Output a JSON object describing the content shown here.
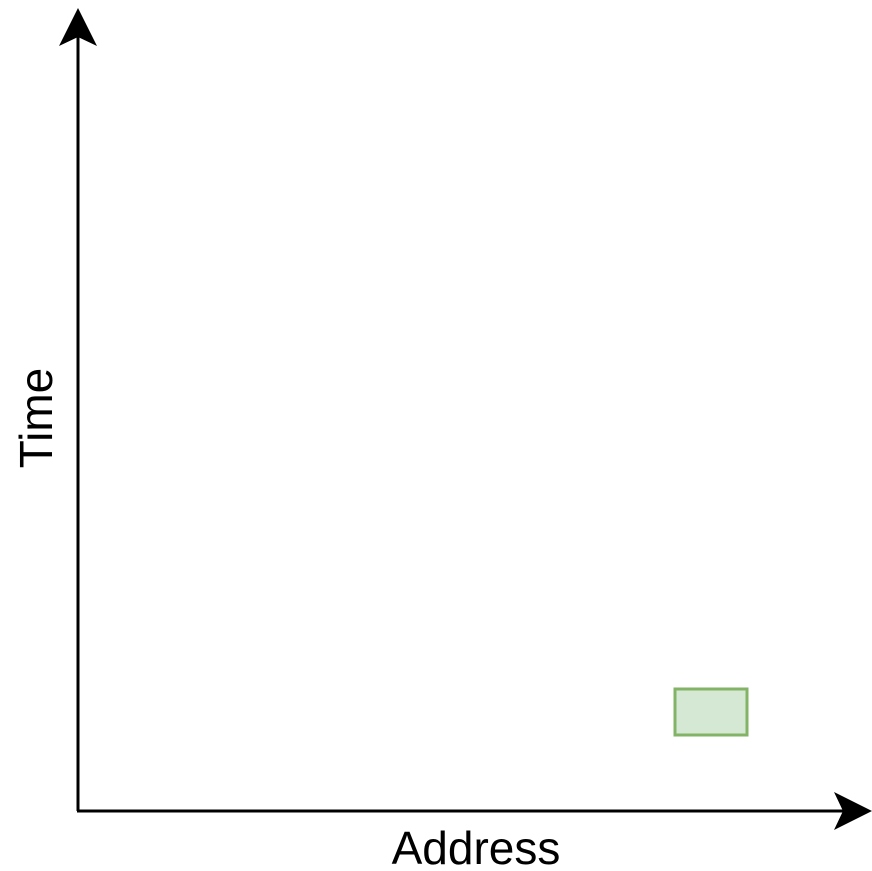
{
  "axes": {
    "x_label": "Address",
    "y_label": "Time",
    "color": "#000000"
  },
  "block": {
    "fill": "#d5e8d4",
    "stroke": "#82b366"
  }
}
